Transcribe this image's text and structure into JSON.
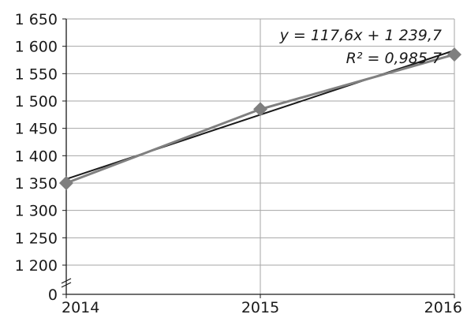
{
  "chart_data": {
    "type": "line",
    "title": "",
    "xlabel": "",
    "ylabel": "",
    "x": [
      2014,
      2015,
      2016
    ],
    "series": [
      {
        "values": [
          1350,
          1485,
          1585
        ],
        "color": "#808080",
        "marker": "diamond",
        "marker_color": "#7f7f7f"
      }
    ],
    "trendline": {
      "type": "linear",
      "slope": 117.6,
      "intercept": 1239.7,
      "r_squared": 0.9857,
      "color": "#1a1a1a",
      "equation_label": "y = 117,6x + 1 239,7",
      "r2_label": "R² = 0,985 7"
    },
    "y_axis": {
      "break": true,
      "ticks": [
        0,
        1200,
        1250,
        1300,
        1350,
        1400,
        1450,
        1500,
        1550,
        1600,
        1650
      ],
      "tick_labels": [
        "0",
        "1 200",
        "1 250",
        "1 300",
        "1 350",
        "1 400",
        "1 450",
        "1 500",
        "1 550",
        "1 600",
        "1 650"
      ],
      "ylim_top": [
        1200,
        1650
      ]
    },
    "x_tick_labels": [
      "2014",
      "2015",
      "2016"
    ],
    "grid": true,
    "legend": "none",
    "colors": {
      "grid": "#a6a6a6",
      "axis": "#1a1a1a"
    }
  }
}
